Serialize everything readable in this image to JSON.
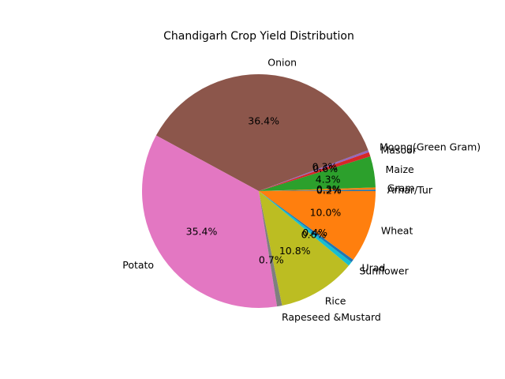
{
  "chart_data": {
    "type": "pie",
    "title": "Chandigarh Crop Yield Distribution",
    "slices": [
      {
        "label": "Arhar/Tur",
        "percent": 0.2,
        "pct_text": "0.2%",
        "color": "#1f77b4"
      },
      {
        "label": "Gram",
        "percent": 0.3,
        "pct_text": "0.3%",
        "color": "#ff7f0e"
      },
      {
        "label": "Maize",
        "percent": 4.3,
        "pct_text": "4.3%",
        "color": "#2ca02c"
      },
      {
        "label": "Masoor",
        "percent": 0.6,
        "pct_text": "0.6%",
        "color": "#d62728"
      },
      {
        "label": "Moong(Green Gram)",
        "percent": 0.3,
        "pct_text": "0.3%",
        "color": "#9467bd"
      },
      {
        "label": "Onion",
        "percent": 36.4,
        "pct_text": "36.4%",
        "color": "#8c564b"
      },
      {
        "label": "Potato",
        "percent": 35.4,
        "pct_text": "35.4%",
        "color": "#e377c2"
      },
      {
        "label": "Rapeseed &Mustard",
        "percent": 0.7,
        "pct_text": "0.7%",
        "color": "#7f7f7f"
      },
      {
        "label": "Rice",
        "percent": 10.8,
        "pct_text": "10.8%",
        "color": "#bcbd22"
      },
      {
        "label": "Sunflower",
        "percent": 0.6,
        "pct_text": "0.6%",
        "color": "#17becf"
      },
      {
        "label": "Urad",
        "percent": 0.4,
        "pct_text": "0.4%",
        "color": "#1f77b4"
      },
      {
        "label": "Wheat",
        "percent": 10.0,
        "pct_text": "10.0%",
        "color": "#ff7f0e"
      }
    ],
    "start_angle_deg": 0,
    "direction": "counterclockwise",
    "legend": "none"
  }
}
